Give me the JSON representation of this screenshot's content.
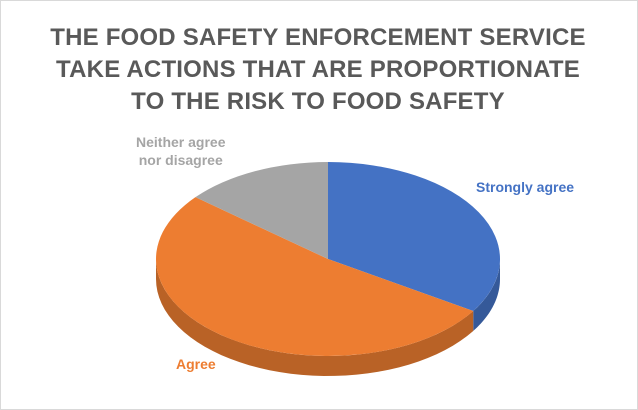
{
  "title_lines": [
    "THE FOOD SAFETY ENFORCEMENT SERVICE",
    "TAKE ACTIONS THAT ARE PROPORTIONATE",
    "TO THE RISK TO FOOD SAFETY"
  ],
  "chart_data": {
    "type": "pie",
    "style": "3d",
    "title": "THE FOOD SAFETY ENFORCEMENT SERVICE TAKE ACTIONS THAT ARE PROPORTIONATE TO THE RISK TO FOOD SAFETY",
    "categories": [
      "Strongly agree",
      "Agree",
      "Neither agree nor disagree"
    ],
    "values": [
      34,
      52,
      14
    ],
    "value_unit": "percent (estimated share of pie)",
    "colors": [
      "#4472c4",
      "#ed7d31",
      "#a5a5a5"
    ],
    "label_lines": [
      [
        "Strongly agree"
      ],
      [
        "Agree"
      ],
      [
        "Neither agree",
        "nor disagree"
      ]
    ],
    "legend": "none"
  }
}
